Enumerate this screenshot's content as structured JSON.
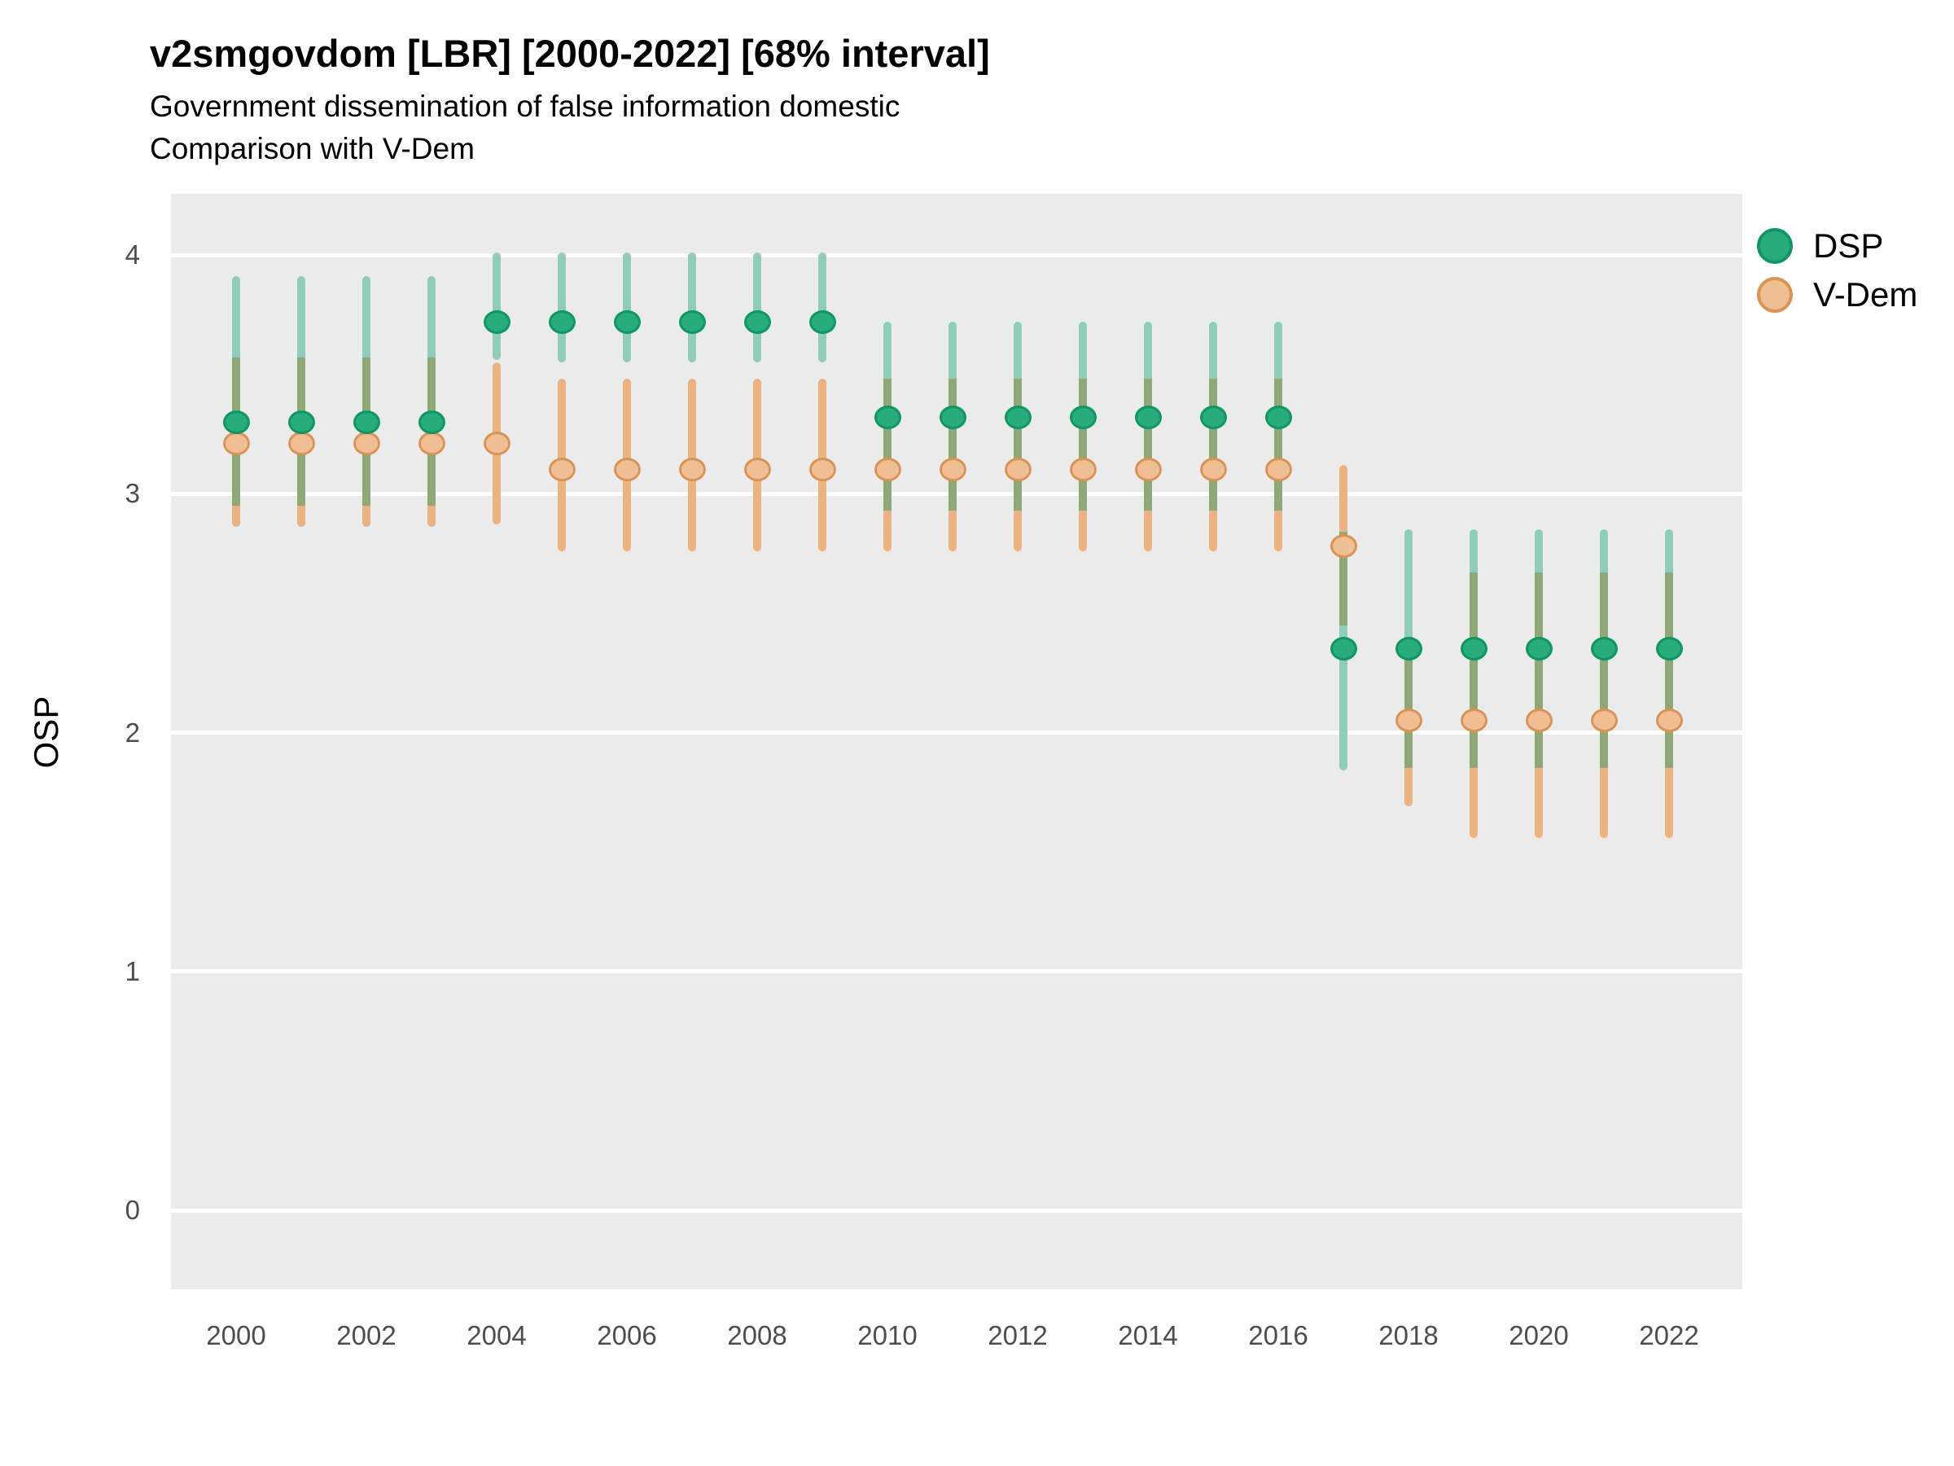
{
  "header": {
    "title": "v2smgovdom [LBR] [2000-2022] [68% interval]",
    "subtitle1": "Government dissemination of false information domestic",
    "subtitle2": "Comparison with V-Dem"
  },
  "chart_data": {
    "type": "scatter",
    "subtype": "point-interval",
    "interval_label": "68% interval",
    "title": "v2smgovdom [LBR] [2000-2022] [68% interval]",
    "subtitle": [
      "Government dissemination of false information domestic",
      "Comparison with V-Dem"
    ],
    "xlabel": "",
    "ylabel": "OSP",
    "ylim": [
      0,
      4
    ],
    "grid": true,
    "legend_position": "right",
    "panel_background": "#EBEBEB",
    "gridline_color": "#FFFFFF",
    "overlap_bar_color": "#8FA878",
    "y_ticks": [
      4,
      3,
      2,
      1,
      0
    ],
    "x_tick_labels": [
      "2000",
      "2002",
      "2004",
      "2006",
      "2008",
      "2010",
      "2012",
      "2014",
      "2016",
      "2018",
      "2020",
      "2022"
    ],
    "x": [
      2000,
      2001,
      2002,
      2003,
      2004,
      2005,
      2006,
      2007,
      2008,
      2009,
      2010,
      2011,
      2012,
      2013,
      2014,
      2015,
      2016,
      2017,
      2018,
      2019,
      2020,
      2021,
      2022
    ],
    "series": [
      {
        "name": "DSP",
        "point_fill": "#29AB7D",
        "point_stroke": "#0F9663",
        "bar_color": "#8FCCBA",
        "values": [
          3.3,
          3.3,
          3.3,
          3.3,
          3.72,
          3.72,
          3.72,
          3.72,
          3.72,
          3.72,
          3.32,
          3.32,
          3.32,
          3.32,
          3.32,
          3.32,
          3.32,
          2.35,
          2.35,
          2.35,
          2.35,
          2.35,
          2.35
        ],
        "lower": [
          2.95,
          2.95,
          2.95,
          2.95,
          3.56,
          3.55,
          3.55,
          3.55,
          3.55,
          3.55,
          2.93,
          2.93,
          2.93,
          2.93,
          2.93,
          2.93,
          2.93,
          1.84,
          1.85,
          1.85,
          1.85,
          1.85,
          1.85
        ],
        "upper": [
          3.91,
          3.91,
          3.91,
          3.91,
          4.01,
          4.01,
          4.01,
          4.01,
          4.01,
          4.01,
          3.72,
          3.72,
          3.72,
          3.72,
          3.72,
          3.72,
          3.72,
          2.84,
          2.85,
          2.85,
          2.85,
          2.85,
          2.85
        ]
      },
      {
        "name": "V-Dem",
        "point_fill": "#EFBE93",
        "point_stroke": "#DB9255",
        "bar_color": "#EBB284",
        "values": [
          3.21,
          3.21,
          3.21,
          3.21,
          3.21,
          3.1,
          3.1,
          3.1,
          3.1,
          3.1,
          3.1,
          3.1,
          3.1,
          3.1,
          3.1,
          3.1,
          3.1,
          2.78,
          2.05,
          2.05,
          2.05,
          2.05,
          2.05
        ],
        "lower": [
          2.86,
          2.86,
          2.86,
          2.86,
          2.87,
          2.76,
          2.76,
          2.76,
          2.76,
          2.76,
          2.76,
          2.76,
          2.76,
          2.76,
          2.76,
          2.76,
          2.76,
          2.45,
          1.69,
          1.56,
          1.56,
          1.56,
          1.56
        ],
        "upper": [
          3.57,
          3.57,
          3.57,
          3.57,
          3.55,
          3.48,
          3.48,
          3.48,
          3.48,
          3.48,
          3.48,
          3.48,
          3.48,
          3.48,
          3.48,
          3.48,
          3.48,
          3.12,
          2.4,
          2.67,
          2.67,
          2.67,
          2.67
        ]
      }
    ]
  }
}
